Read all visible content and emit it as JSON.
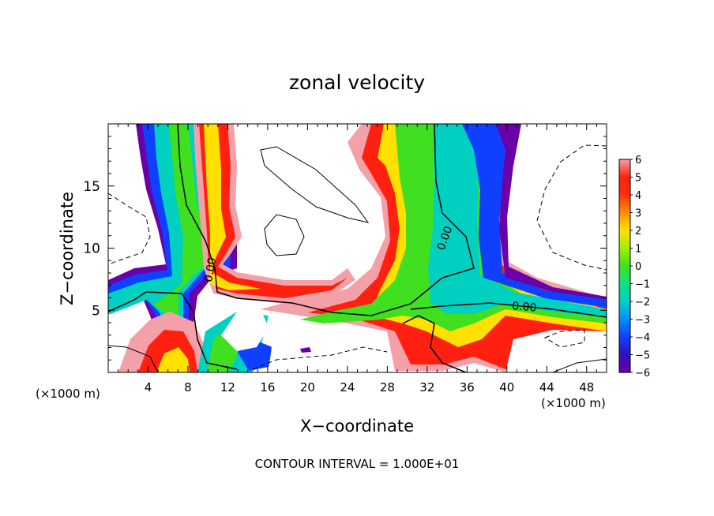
{
  "chart_data": {
    "type": "heatmap",
    "title": "zonal velocity",
    "xlabel": "X−coordinate",
    "ylabel": "Z−coordinate",
    "x_unit_left": "(×1000 m)",
    "x_unit_right": "(×1000 m)",
    "xlim": [
      0,
      50
    ],
    "ylim": [
      0,
      20
    ],
    "xticks": [
      "4",
      "8",
      "12",
      "16",
      "20",
      "24",
      "28",
      "32",
      "36",
      "40",
      "44",
      "48"
    ],
    "xtick_values": [
      4,
      8,
      12,
      16,
      20,
      24,
      28,
      32,
      36,
      40,
      44,
      48
    ],
    "yticks": [
      "5",
      "10",
      "15"
    ],
    "ytick_values": [
      5,
      10,
      15
    ],
    "colorbar": {
      "labels": [
        "6",
        "5",
        "4",
        "3",
        "2",
        "1",
        "0",
        "−1",
        "−2",
        "−3",
        "−4",
        "−5",
        "−6"
      ],
      "values": [
        6,
        5,
        4,
        3,
        2,
        1,
        0,
        -1,
        -2,
        -3,
        -4,
        -5,
        -6
      ],
      "range": [
        -6,
        6
      ]
    },
    "contour_labels": [
      "0.00",
      "0.00",
      "0.00"
    ],
    "footer": "CONTOUR INTERVAL = 1.000E+01",
    "colors": {
      "pos_high": "#f4a0a8",
      "pos_mid": "#ff2010",
      "pos_low": "#ffe000",
      "zero": "#40e020",
      "neg_low": "#00d0c0",
      "neg_mid": "#1040ff",
      "neg_high": "#6a00a8"
    }
  }
}
